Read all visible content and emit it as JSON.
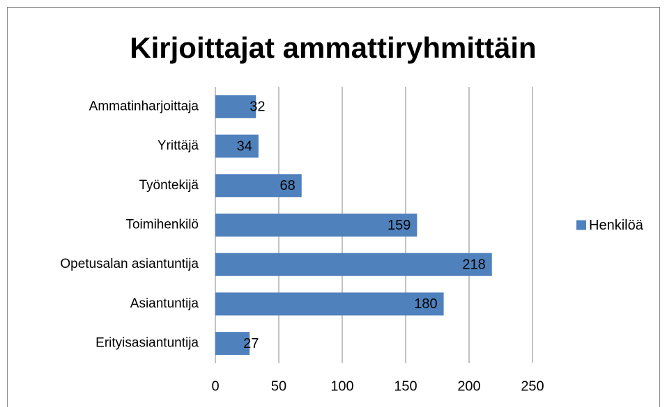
{
  "chart_data": {
    "type": "barh",
    "title": "Kirjoittajat ammattiryhmittäin",
    "categories": [
      "Ammatinharjoittaja",
      "Yrittäjä",
      "Työntekijä",
      "Toimihenkilö",
      "Opetusalan asiantuntija",
      "Asiantuntija",
      "Erityisasiantuntija"
    ],
    "series": [
      {
        "name": "Henkilöä",
        "color": "#4f81bd",
        "values": [
          32,
          34,
          68,
          159,
          218,
          180,
          27
        ]
      }
    ],
    "xlim": [
      0,
      250
    ],
    "xticks": [
      0,
      50,
      100,
      150,
      200,
      250
    ],
    "grid": true,
    "legend": "right"
  }
}
